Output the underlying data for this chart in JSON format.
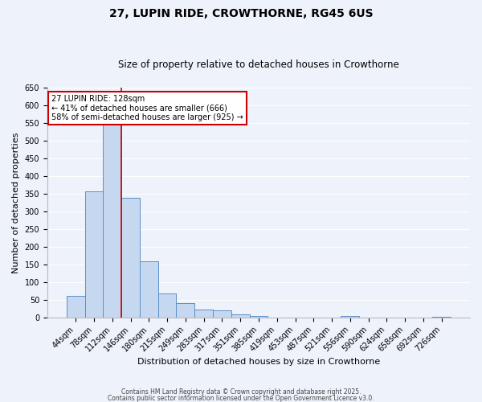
{
  "title": "27, LUPIN RIDE, CROWTHORNE, RG45 6US",
  "subtitle": "Size of property relative to detached houses in Crowthorne",
  "xlabel": "Distribution of detached houses by size in Crowthorne",
  "ylabel": "Number of detached properties",
  "bin_labels": [
    "44sqm",
    "78sqm",
    "112sqm",
    "146sqm",
    "180sqm",
    "215sqm",
    "249sqm",
    "283sqm",
    "317sqm",
    "351sqm",
    "385sqm",
    "419sqm",
    "453sqm",
    "487sqm",
    "521sqm",
    "556sqm",
    "590sqm",
    "624sqm",
    "658sqm",
    "692sqm",
    "726sqm"
  ],
  "bar_values": [
    60,
    357,
    547,
    338,
    158,
    68,
    40,
    22,
    20,
    8,
    5,
    0,
    0,
    0,
    0,
    5,
    0,
    0,
    0,
    0,
    2
  ],
  "bar_color": "#c5d8f0",
  "bar_edge_color": "#5b8fc9",
  "vline_x_idx": 2,
  "vline_color": "#cc0000",
  "ylim": [
    0,
    650
  ],
  "yticks": [
    0,
    50,
    100,
    150,
    200,
    250,
    300,
    350,
    400,
    450,
    500,
    550,
    600,
    650
  ],
  "annotation_title": "27 LUPIN RIDE: 128sqm",
  "annotation_line1": "← 41% of detached houses are smaller (666)",
  "annotation_line2": "58% of semi-detached houses are larger (925) →",
  "annotation_box_color": "#ffffff",
  "annotation_box_edge": "#cc0000",
  "footer1": "Contains HM Land Registry data © Crown copyright and database right 2025.",
  "footer2": "Contains public sector information licensed under the Open Government Licence v3.0.",
  "bg_color": "#eef2fb",
  "grid_color": "#ffffff",
  "title_fontsize": 10,
  "subtitle_fontsize": 8.5,
  "axis_label_fontsize": 8,
  "tick_fontsize": 7,
  "footer_fontsize": 5.5
}
